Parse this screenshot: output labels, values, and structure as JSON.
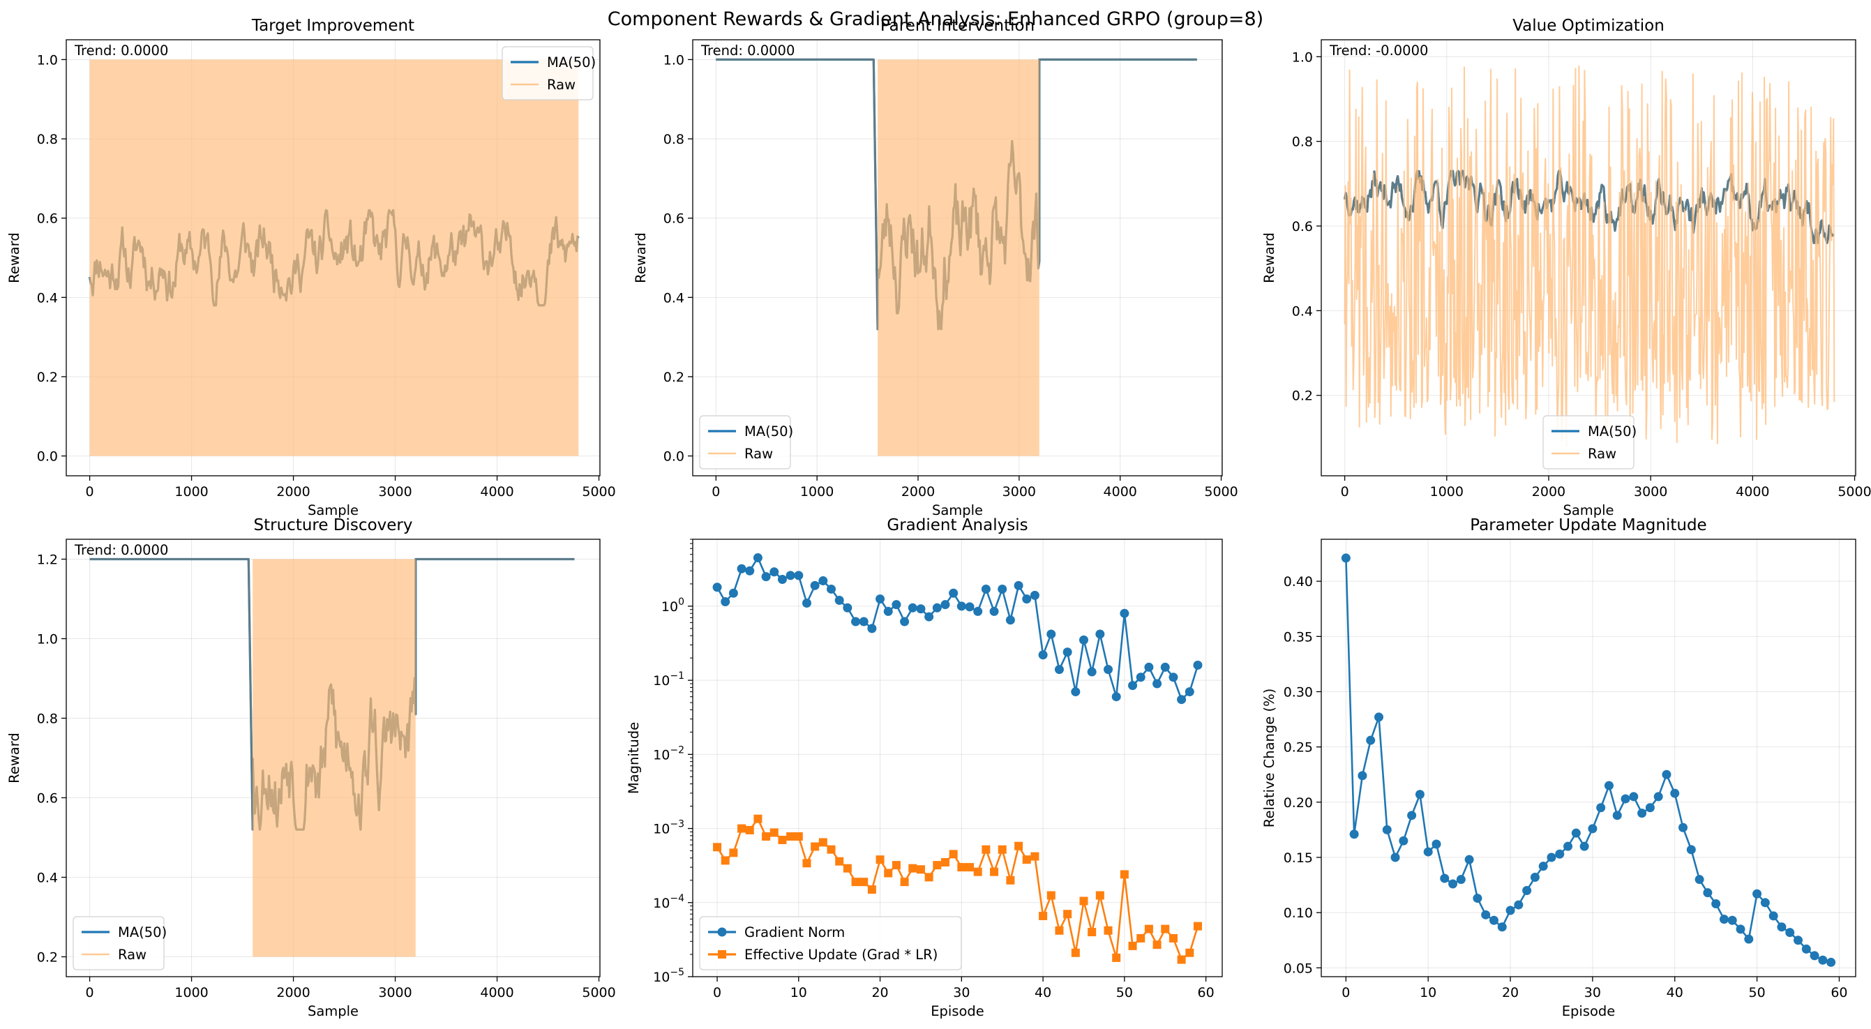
{
  "figure": {
    "suptitle": "Component Rewards & Gradient Analysis: Enhanced GRPO (group=8)"
  },
  "colors": {
    "ma": "#1f77b4",
    "raw": "#ffbb78",
    "grad": "#1f77b4",
    "update": "#ff7f0e",
    "param": "#1f77b4",
    "grid": "#b0b0b0"
  },
  "chart_data": [
    {
      "type": "line",
      "title": "Target Improvement",
      "xlabel": "Sample",
      "ylabel": "Reward",
      "xlim": [
        -230,
        5010
      ],
      "ylim": [
        -0.05,
        1.05
      ],
      "xticks": [
        0,
        1000,
        2000,
        3000,
        4000,
        5000
      ],
      "yticks": [
        0.0,
        0.2,
        0.4,
        0.6,
        0.8,
        1.0
      ],
      "annotation": "Trend: 0.0000",
      "legend": {
        "position": "top-right",
        "entries": [
          "MA(50)",
          "Raw"
        ]
      },
      "series": [
        {
          "name": "MA(50)",
          "kind": "ma",
          "xmax": 4800,
          "n": 480,
          "base": 0.5,
          "amp": 0.05,
          "clip": [
            0.38,
            0.62
          ],
          "seed": 11,
          "segments": [
            [
              0,
              4800,
              0.5
            ]
          ]
        },
        {
          "name": "Raw",
          "kind": "raw",
          "band": [
            [
              0,
              4800,
              0.0,
              1.0
            ]
          ]
        }
      ]
    },
    {
      "type": "line",
      "title": "Parent Intervention",
      "xlabel": "Sample",
      "ylabel": "Reward",
      "xlim": [
        -230,
        5010
      ],
      "ylim": [
        -0.05,
        1.05
      ],
      "xticks": [
        0,
        1000,
        2000,
        3000,
        4000,
        5000
      ],
      "yticks": [
        0.0,
        0.2,
        0.4,
        0.6,
        0.8,
        1.0
      ],
      "annotation": "Trend: 0.0000",
      "legend": {
        "position": "lower-left",
        "entries": [
          "MA(50)",
          "Raw"
        ]
      },
      "series": [
        {
          "name": "MA(50)",
          "kind": "ma",
          "xmax": 4760,
          "n": 476,
          "base": 0.55,
          "amp": 0.09,
          "clip": [
            0.32,
            0.82
          ],
          "seed": 23,
          "segments": [
            [
              0,
              1560,
              1.0,
              "flat"
            ],
            [
              1560,
              1600,
              0.32,
              "drop"
            ],
            [
              1600,
              3200,
              0.55
            ],
            [
              3200,
              4760,
              1.0,
              "flat"
            ]
          ]
        },
        {
          "name": "Raw",
          "kind": "raw",
          "band": [
            [
              1600,
              3200,
              0.0,
              1.0
            ]
          ]
        }
      ]
    },
    {
      "type": "line",
      "title": "Value Optimization",
      "xlabel": "Sample",
      "ylabel": "Reward",
      "xlim": [
        -230,
        5010
      ],
      "ylim": [
        0.01,
        1.04
      ],
      "xticks": [
        0,
        1000,
        2000,
        3000,
        4000,
        5000
      ],
      "yticks": [
        0.2,
        0.4,
        0.6,
        0.8,
        1.0
      ],
      "annotation": "Trend: -0.0000",
      "legend": {
        "position": "bottom-center",
        "entries": [
          "MA(50)",
          "Raw"
        ]
      },
      "series": [
        {
          "name": "MA(50)",
          "kind": "ma",
          "xmax": 4800,
          "n": 480,
          "base": 0.64,
          "amp": 0.035,
          "clip": [
            0.56,
            0.73
          ],
          "seed": 37,
          "start": 0.72,
          "end": 0.62,
          "segments": [
            [
              0,
              4800,
              0.64
            ]
          ]
        },
        {
          "name": "Raw",
          "kind": "rawnoise",
          "xmax": 4800,
          "n": 700,
          "lo": 0.05,
          "hi": 0.98,
          "seed": 41
        }
      ]
    },
    {
      "type": "line",
      "title": "Structure Discovery",
      "xlabel": "Sample",
      "ylabel": "Reward",
      "xlim": [
        -230,
        5010
      ],
      "ylim": [
        0.15,
        1.25
      ],
      "xticks": [
        0,
        1000,
        2000,
        3000,
        4000,
        5000
      ],
      "yticks": [
        0.2,
        0.4,
        0.6,
        0.8,
        1.0,
        1.2
      ],
      "annotation": "Trend: 0.0000",
      "legend": {
        "position": "lower-left",
        "entries": [
          "MA(50)",
          "Raw"
        ]
      },
      "series": [
        {
          "name": "MA(50)",
          "kind": "ma",
          "xmax": 4760,
          "n": 476,
          "base": 0.72,
          "amp": 0.09,
          "clip": [
            0.52,
            1.02
          ],
          "seed": 53,
          "segments": [
            [
              0,
              1560,
              1.2,
              "flat"
            ],
            [
              1560,
              1600,
              0.52,
              "drop"
            ],
            [
              1600,
              3200,
              0.72
            ],
            [
              3200,
              4760,
              1.2,
              "flat"
            ]
          ]
        },
        {
          "name": "Raw",
          "kind": "raw",
          "band": [
            [
              1600,
              3200,
              0.2,
              1.2
            ]
          ]
        }
      ]
    },
    {
      "type": "line",
      "title": "Gradient Analysis",
      "xlabel": "Episode",
      "ylabel": "Magnitude",
      "scale": "log",
      "xlim": [
        -3,
        62
      ],
      "ylim": [
        1e-05,
        8
      ],
      "xticks": [
        0,
        10,
        20,
        30,
        40,
        50,
        60
      ],
      "yticks": [
        1e-05,
        0.0001,
        0.001,
        0.01,
        0.1,
        1
      ],
      "ytick_labels": [
        [
          "10",
          "−5"
        ],
        [
          "10",
          "−4"
        ],
        [
          "10",
          "−3"
        ],
        [
          "10",
          "−2"
        ],
        [
          "10",
          "−1"
        ],
        [
          "10",
          "0"
        ]
      ],
      "legend": {
        "position": "lower-left",
        "entries": [
          "Gradient Norm",
          "Effective Update (Grad * LR)"
        ]
      },
      "x": [
        0,
        1,
        2,
        3,
        4,
        5,
        6,
        7,
        8,
        9,
        10,
        11,
        12,
        13,
        14,
        15,
        16,
        17,
        18,
        19,
        20,
        21,
        22,
        23,
        24,
        25,
        26,
        27,
        28,
        29,
        30,
        31,
        32,
        33,
        34,
        35,
        36,
        37,
        38,
        39,
        40,
        41,
        42,
        43,
        44,
        45,
        46,
        47,
        48,
        49,
        50,
        51,
        52,
        53,
        54,
        55,
        56,
        57,
        58,
        59
      ],
      "series": [
        {
          "name": "Gradient Norm",
          "marker": "circle",
          "values": [
            1.8,
            1.15,
            1.5,
            3.2,
            3.0,
            4.5,
            2.5,
            2.9,
            2.3,
            2.6,
            2.6,
            1.1,
            1.9,
            2.2,
            1.7,
            1.2,
            0.95,
            0.62,
            0.62,
            0.5,
            1.25,
            0.85,
            1.05,
            0.62,
            0.95,
            0.92,
            0.72,
            0.95,
            1.05,
            1.5,
            1.0,
            0.98,
            0.85,
            1.7,
            0.85,
            1.7,
            0.65,
            1.9,
            1.25,
            1.4,
            0.22,
            0.42,
            0.14,
            0.24,
            0.07,
            0.35,
            0.13,
            0.42,
            0.14,
            0.06,
            0.8,
            0.085,
            0.11,
            0.15,
            0.09,
            0.15,
            0.11,
            0.055,
            0.07,
            0.16
          ]
        },
        {
          "name": "Effective Update (Grad * LR)",
          "marker": "square",
          "values": [
            0.00056,
            0.00037,
            0.00047,
            0.001,
            0.00095,
            0.00135,
            0.00078,
            0.00088,
            0.0007,
            0.00078,
            0.00078,
            0.00034,
            0.00057,
            0.00065,
            0.00052,
            0.00036,
            0.00029,
            0.00019,
            0.00019,
            0.00015,
            0.00038,
            0.00025,
            0.00032,
            0.00019,
            0.00029,
            0.00028,
            0.00022,
            0.00032,
            0.00035,
            0.00045,
            0.0003,
            0.0003,
            0.00026,
            0.00052,
            0.00026,
            0.00052,
            0.0002,
            0.00058,
            0.00038,
            0.00042,
            6.6e-05,
            0.000125,
            4.2e-05,
            7e-05,
            2.1e-05,
            0.000105,
            4e-05,
            0.000125,
            4.2e-05,
            1.8e-05,
            0.00024,
            2.6e-05,
            3.3e-05,
            4.4e-05,
            2.7e-05,
            4.4e-05,
            3.3e-05,
            1.7e-05,
            2.1e-05,
            4.8e-05
          ]
        }
      ]
    },
    {
      "type": "line",
      "title": "Parameter Update Magnitude",
      "xlabel": "Episode",
      "ylabel": "Relative Change (%)",
      "xlim": [
        -3,
        62
      ],
      "ylim": [
        0.042,
        0.438
      ],
      "xticks": [
        0,
        10,
        20,
        30,
        40,
        50,
        60
      ],
      "yticks": [
        0.05,
        0.1,
        0.15,
        0.2,
        0.25,
        0.3,
        0.35,
        0.4
      ],
      "x": [
        0,
        1,
        2,
        3,
        4,
        5,
        6,
        7,
        8,
        9,
        10,
        11,
        12,
        13,
        14,
        15,
        16,
        17,
        18,
        19,
        20,
        21,
        22,
        23,
        24,
        25,
        26,
        27,
        28,
        29,
        30,
        31,
        32,
        33,
        34,
        35,
        36,
        37,
        38,
        39,
        40,
        41,
        42,
        43,
        44,
        45,
        46,
        47,
        48,
        49,
        50,
        51,
        52,
        53,
        54,
        55,
        56,
        57,
        58,
        59
      ],
      "series": [
        {
          "name": "",
          "marker": "circle",
          "values": [
            0.421,
            0.171,
            0.224,
            0.256,
            0.277,
            0.175,
            0.15,
            0.165,
            0.188,
            0.207,
            0.155,
            0.162,
            0.131,
            0.126,
            0.13,
            0.148,
            0.113,
            0.098,
            0.093,
            0.087,
            0.102,
            0.107,
            0.12,
            0.132,
            0.142,
            0.15,
            0.153,
            0.16,
            0.172,
            0.16,
            0.176,
            0.195,
            0.215,
            0.188,
            0.203,
            0.205,
            0.19,
            0.195,
            0.205,
            0.225,
            0.208,
            0.177,
            0.157,
            0.13,
            0.118,
            0.108,
            0.094,
            0.093,
            0.085,
            0.076,
            0.117,
            0.109,
            0.097,
            0.087,
            0.082,
            0.075,
            0.067,
            0.061,
            0.057,
            0.055
          ]
        }
      ]
    }
  ]
}
